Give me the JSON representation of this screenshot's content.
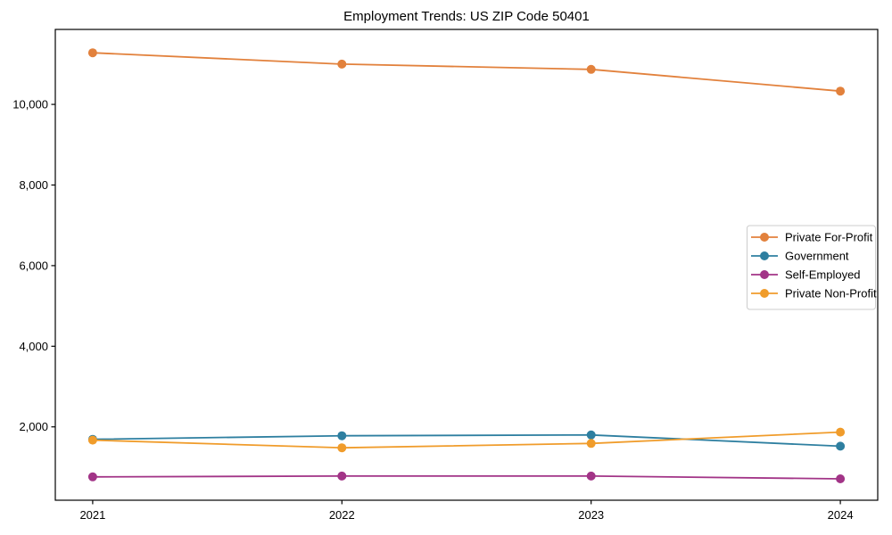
{
  "figure": {
    "background": "#ffffff",
    "frame_color": "#000000"
  },
  "chart_data": {
    "type": "line",
    "title": "Employment Trends: US ZIP Code 50401",
    "x": [
      2021,
      2022,
      2023,
      2024
    ],
    "x_tick_labels": [
      "2021",
      "2022",
      "2023",
      "2024"
    ],
    "y_ticks": [
      2000,
      4000,
      6000,
      8000,
      10000
    ],
    "y_tick_labels": [
      "2,000",
      "4,000",
      "6,000",
      "8,000",
      "10,000"
    ],
    "xlim": [
      2020.85,
      2024.15
    ],
    "ylim": [
      180,
      11860
    ],
    "grid": false,
    "xlabel": "",
    "ylabel": "",
    "legend": {
      "position": "center-right",
      "frame": true,
      "border_color": "#cccccc",
      "background": "#ffffff"
    },
    "marker": "circle",
    "marker_radius": 5,
    "line_width": 1.8,
    "series": [
      {
        "name": "Private For-Profit",
        "color": "#E2813C",
        "values": [
          11280,
          11000,
          10870,
          10330
        ]
      },
      {
        "name": "Government",
        "color": "#2E7FA0",
        "values": [
          1690,
          1780,
          1800,
          1520
        ]
      },
      {
        "name": "Self-Employed",
        "color": "#A23487",
        "values": [
          760,
          780,
          780,
          710
        ]
      },
      {
        "name": "Private Non-Profit",
        "color": "#F09C2B",
        "values": [
          1670,
          1480,
          1590,
          1870
        ]
      }
    ]
  }
}
